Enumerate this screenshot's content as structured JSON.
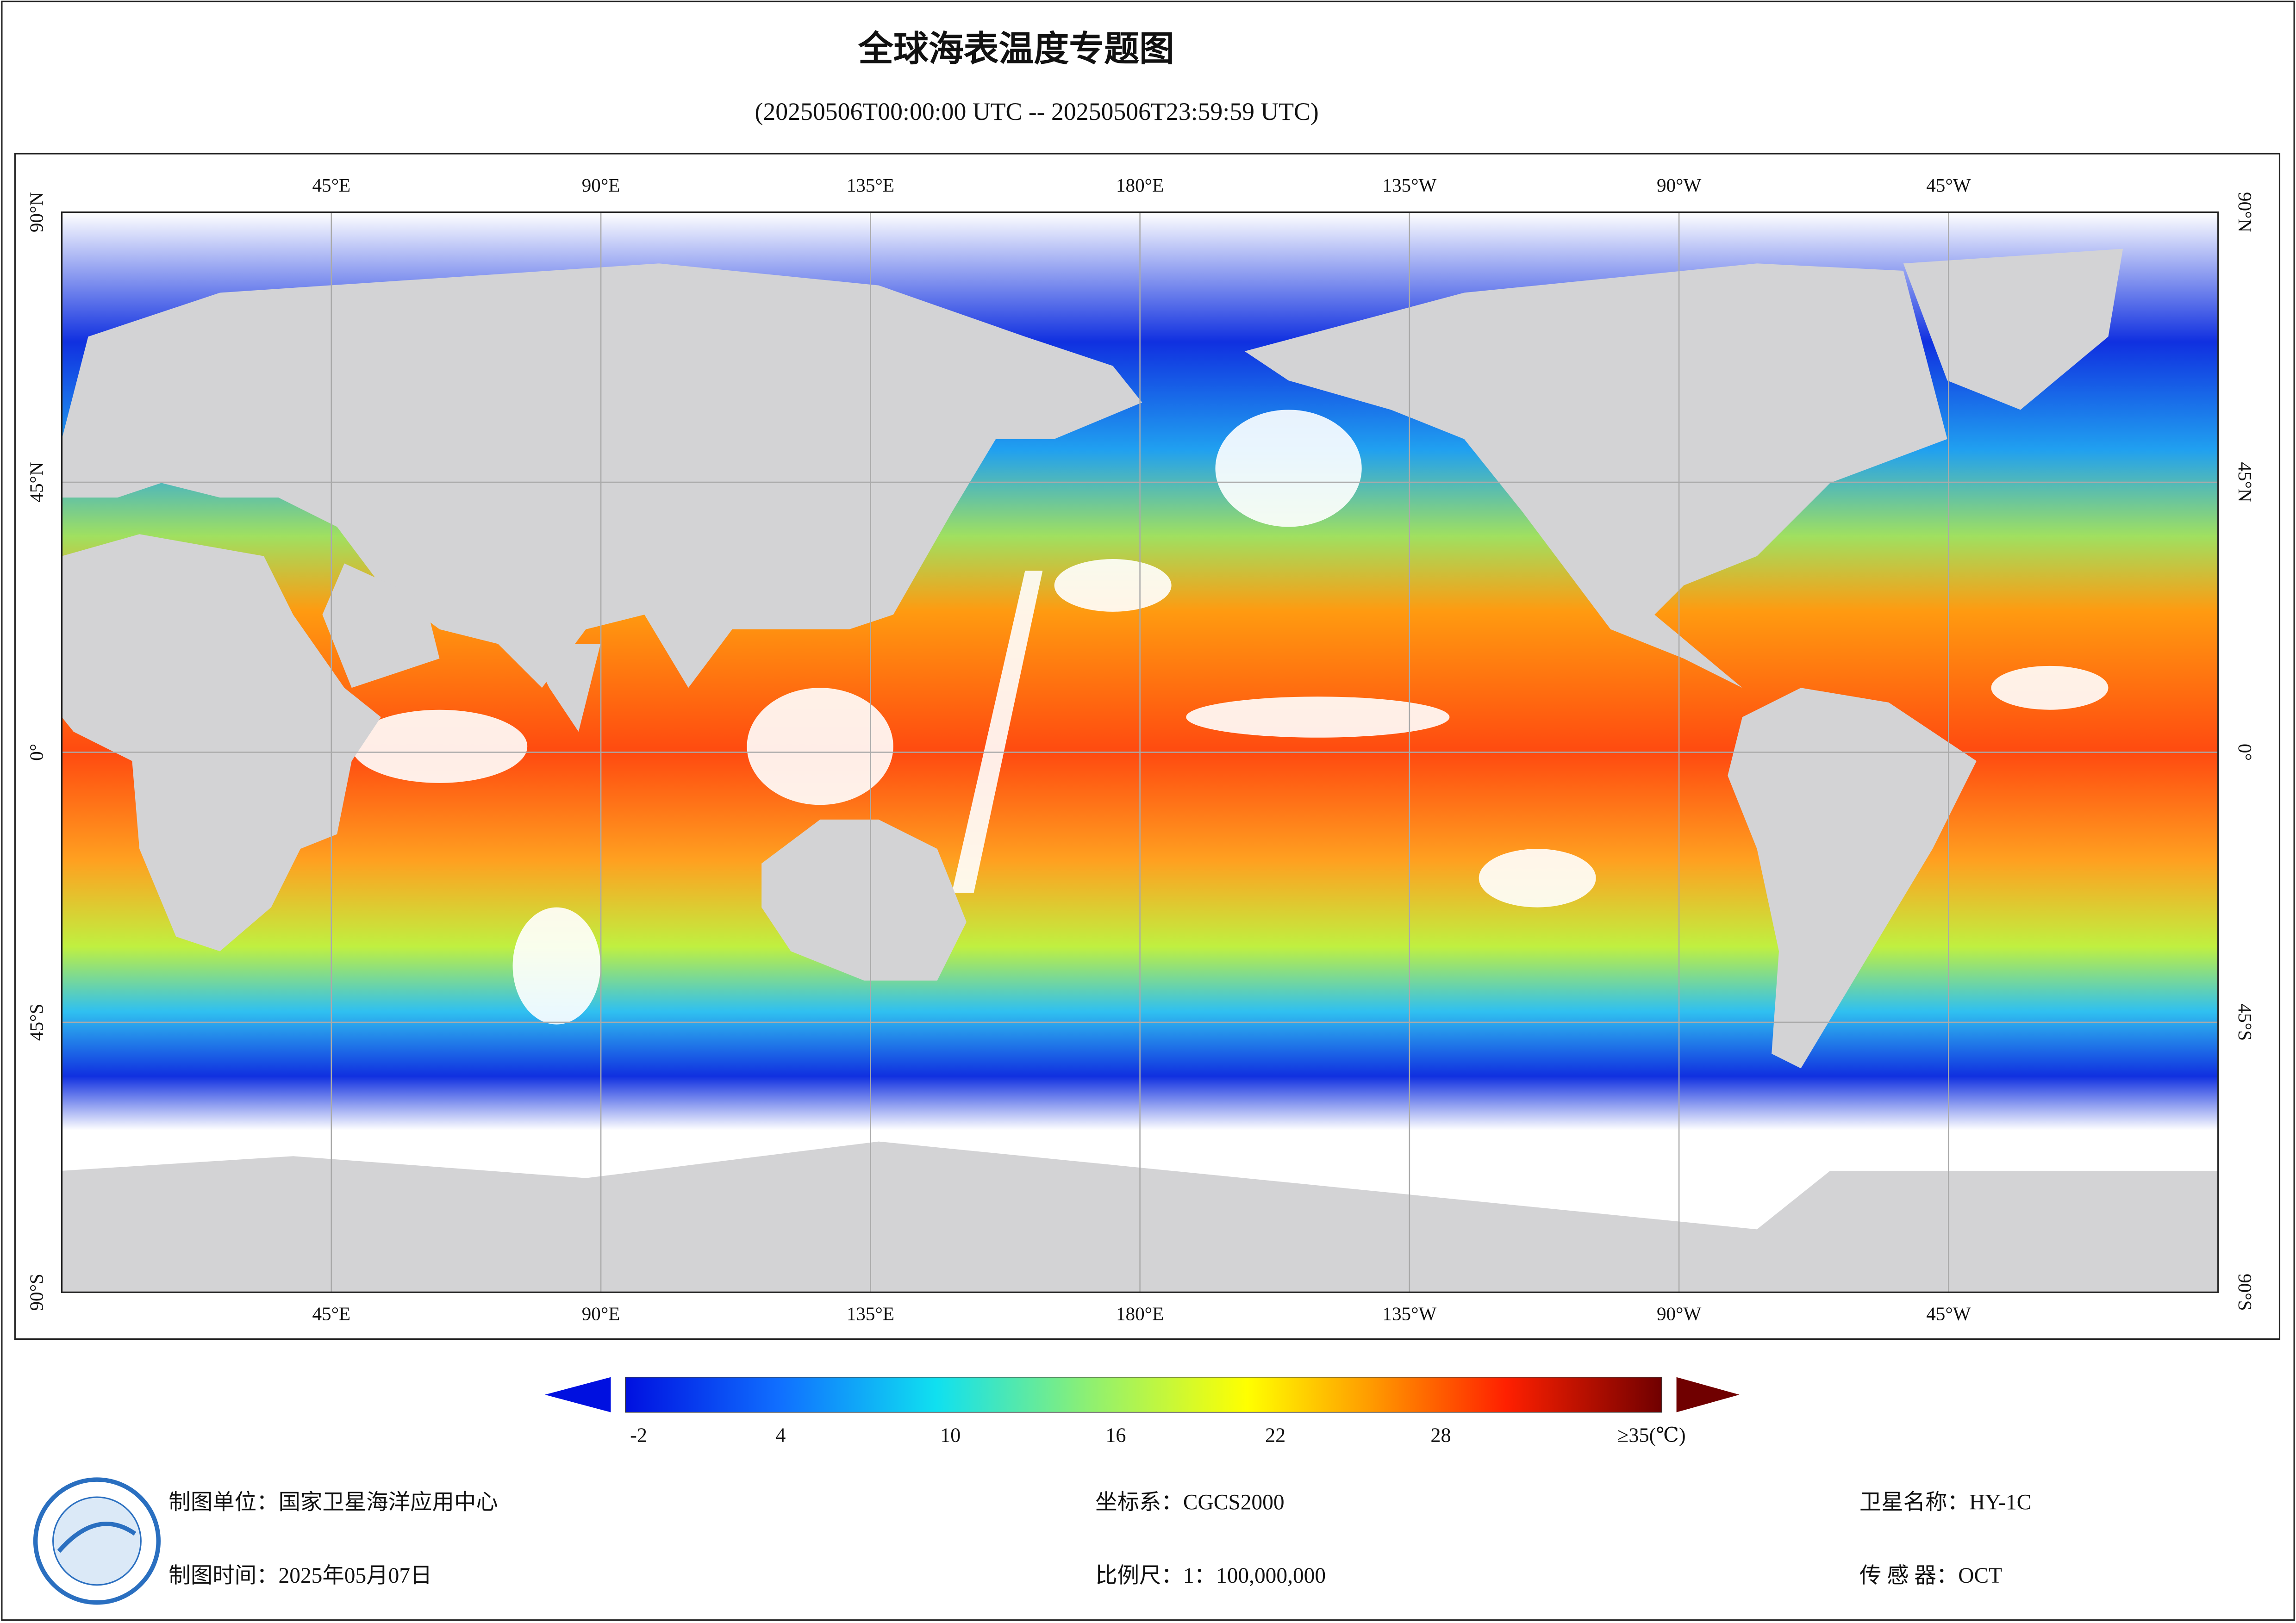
{
  "header": {
    "title": "全球海表温度专题图",
    "subtitle": "(20250506T00:00:00 UTC -- 20250506T23:59:59 UTC)"
  },
  "map": {
    "lon_labels": [
      "45°E",
      "90°E",
      "135°E",
      "180°E",
      "135°W",
      "90°W",
      "45°W"
    ],
    "lat_labels": [
      "90°N",
      "45°N",
      "0°",
      "45°S",
      "90°S"
    ]
  },
  "colorbar": {
    "ticks": [
      "-2",
      "4",
      "10",
      "16",
      "22",
      "28",
      "≥35(℃)"
    ]
  },
  "footer": {
    "unit": "制图单位：国家卫星海洋应用中心",
    "time": "制图时间：2025年05月07日",
    "crs": "坐标系：CGCS2000",
    "scale": "比例尺：1：100,000,000",
    "satellite": "卫星名称：HY-1C",
    "sensor": "传 感 器：OCT"
  }
}
